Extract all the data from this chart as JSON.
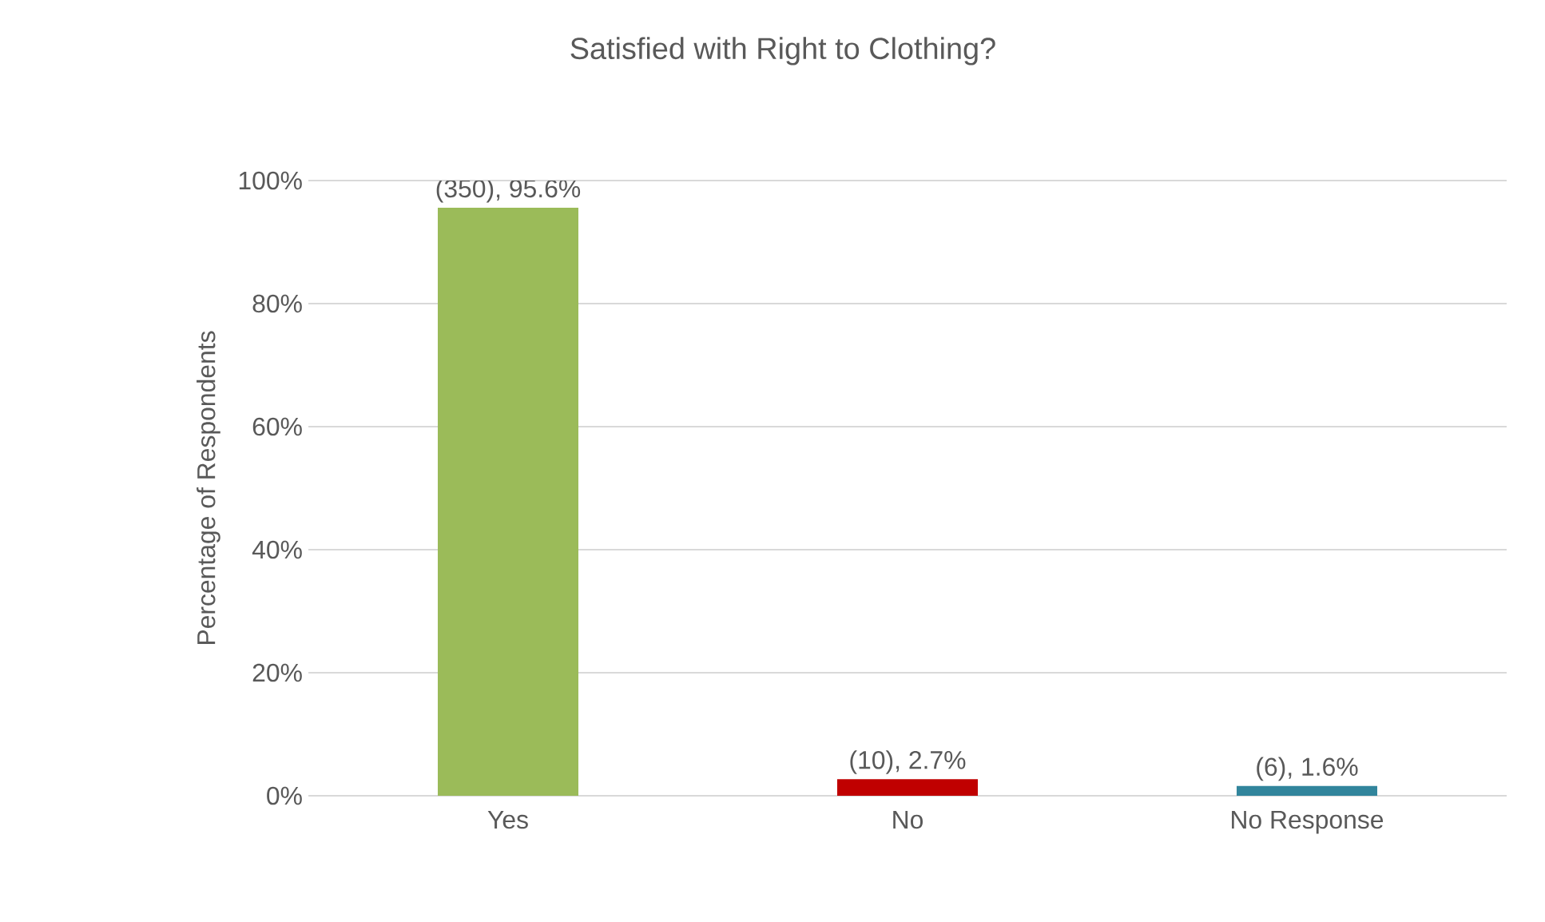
{
  "chart_data": {
    "type": "bar",
    "title": "Satisfied with Right to Clothing?",
    "ylabel": "Percentage of Respondents",
    "categories": [
      "Yes",
      "No",
      "No Response"
    ],
    "values": [
      95.6,
      2.7,
      1.6
    ],
    "colors": [
      "#9bbb59",
      "#c00000",
      "#31859c"
    ],
    "value_labels": [
      "(350), 95.6%",
      "(10), 2.7%",
      "(6), 1.6%"
    ],
    "ylim": [
      0,
      100
    ],
    "yticks": [
      {
        "value": 0,
        "label": "0%"
      },
      {
        "value": 20,
        "label": "20%"
      },
      {
        "value": 40,
        "label": "40%"
      },
      {
        "value": 60,
        "label": "60%"
      },
      {
        "value": 80,
        "label": "80%"
      },
      {
        "value": 100,
        "label": "100%"
      }
    ],
    "grid": "y"
  }
}
